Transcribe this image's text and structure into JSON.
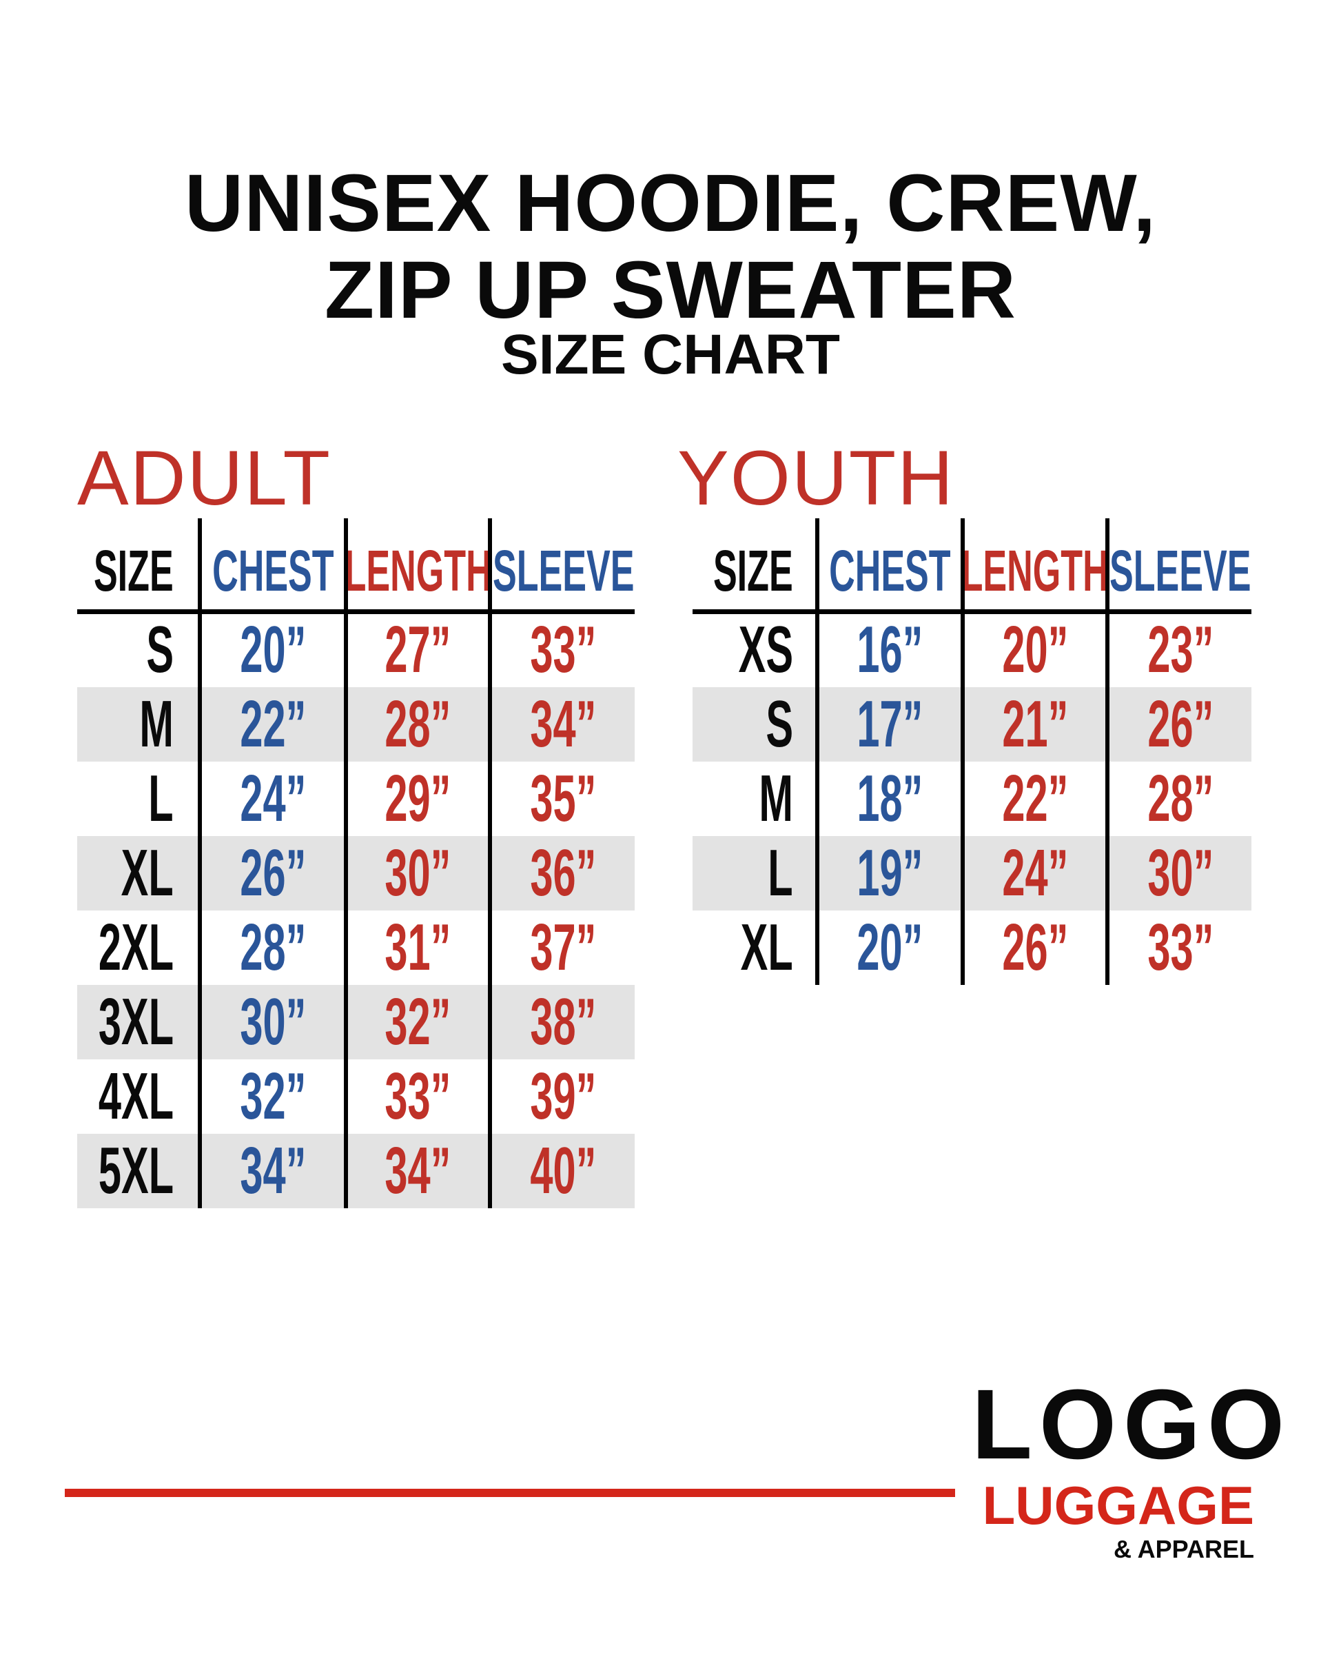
{
  "title": {
    "line1": "UNISEX HOODIE, CREW,",
    "line2": "ZIP UP SWEATER",
    "line3": "SIZE CHART"
  },
  "colors": {
    "blue": "#2a5599",
    "red": "#bf3128",
    "shade": "#e3e3e3",
    "logo_red": "#d4261a"
  },
  "adult": {
    "label": "ADULT",
    "headers": [
      "SIZE",
      "CHEST",
      "LENGTH",
      "SLEEVE"
    ],
    "rows": [
      [
        "S",
        "20”",
        "27”",
        "33”"
      ],
      [
        "M",
        "22”",
        "28”",
        "34”"
      ],
      [
        "L",
        "24”",
        "29”",
        "35”"
      ],
      [
        "XL",
        "26”",
        "30”",
        "36”"
      ],
      [
        "2XL",
        "28”",
        "31”",
        "37”"
      ],
      [
        "3XL",
        "30”",
        "32”",
        "38”"
      ],
      [
        "4XL",
        "32”",
        "33”",
        "39”"
      ],
      [
        "5XL",
        "34”",
        "34”",
        "40”"
      ]
    ]
  },
  "youth": {
    "label": "YOUTH",
    "headers": [
      "SIZE",
      "CHEST",
      "LENGTH",
      "SLEEVE"
    ],
    "rows": [
      [
        "XS",
        "16”",
        "20”",
        "23”"
      ],
      [
        "S",
        "17”",
        "21”",
        "26”"
      ],
      [
        "M",
        "18”",
        "22”",
        "28”"
      ],
      [
        "L",
        "19”",
        "24”",
        "30”"
      ],
      [
        "XL",
        "20”",
        "26”",
        "33”"
      ]
    ]
  },
  "logo": {
    "main": "LOGO",
    "sub": "LUGGAGE",
    "sub2": "& APPAREL"
  }
}
